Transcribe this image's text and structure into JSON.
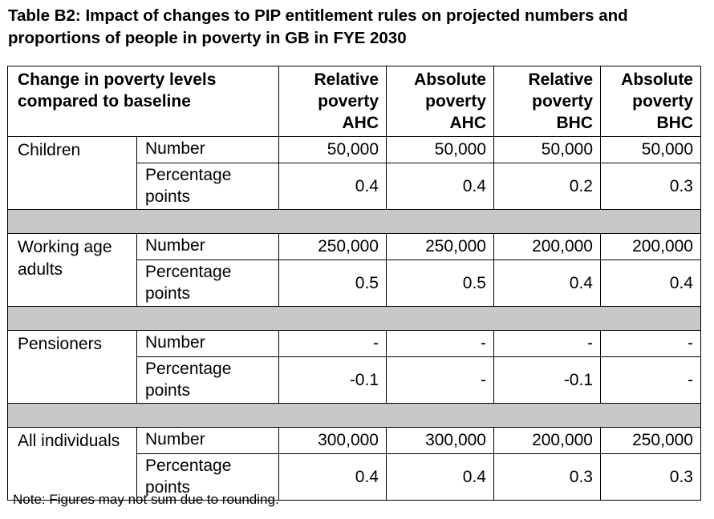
{
  "title": "Table B2: Impact of changes to PIP entitlement rules on projected numbers and proportions of people in poverty in GB in FYE 2030",
  "table": {
    "corner_header": "Change in poverty levels compared to baseline",
    "columns": [
      "Relative poverty AHC",
      "Absolute poverty AHC",
      "Relative poverty BHC",
      "Absolute poverty BHC"
    ],
    "row_labels": {
      "number": "Number",
      "percentage_points": "Percentage points"
    },
    "groups": [
      {
        "name": "Children",
        "number": [
          "50,000",
          "50,000",
          "50,000",
          "50,000"
        ],
        "percentage_points": [
          "0.4",
          "0.4",
          "0.2",
          "0.3"
        ]
      },
      {
        "name": "Working age adults",
        "number": [
          "250,000",
          "250,000",
          "200,000",
          "200,000"
        ],
        "percentage_points": [
          "0.5",
          "0.5",
          "0.4",
          "0.4"
        ]
      },
      {
        "name": "Pensioners",
        "number": [
          "-",
          "-",
          "-",
          "-"
        ],
        "percentage_points": [
          "-0.1",
          "-",
          "-0.1",
          "-"
        ]
      },
      {
        "name": "All individuals",
        "number": [
          "300,000",
          "300,000",
          "200,000",
          "250,000"
        ],
        "percentage_points": [
          "0.4",
          "0.4",
          "0.3",
          "0.3"
        ]
      }
    ]
  },
  "note": "Note: Figures may not sum due to rounding."
}
